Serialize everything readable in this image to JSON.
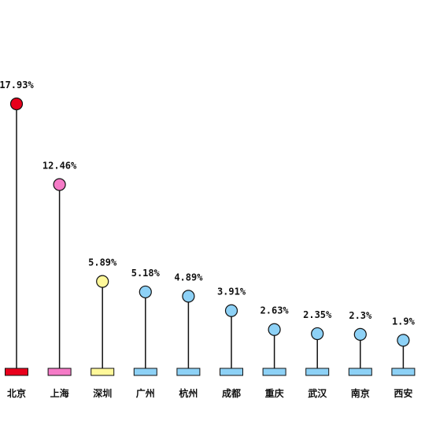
{
  "chart_data": {
    "type": "lollipop",
    "title": "",
    "xlabel": "",
    "ylabel": "",
    "ylim": [
      0,
      20
    ],
    "grid": false,
    "legend": "none",
    "categories": [
      "北京",
      "上海",
      "深圳",
      "广州",
      "杭州",
      "成都",
      "重庆",
      "武汉",
      "南京",
      "西安"
    ],
    "values": [
      17.93,
      12.46,
      5.89,
      5.18,
      4.89,
      3.91,
      2.63,
      2.35,
      2.3,
      1.9
    ],
    "labels": [
      "17.93%",
      "12.46%",
      "5.89%",
      "5.18%",
      "4.89%",
      "3.91%",
      "2.63%",
      "2.35%",
      "2.3%",
      "1.9%"
    ],
    "colors": [
      "#e8001c",
      "#f57bc7",
      "#fff89a",
      "#8dd1f6",
      "#8dd1f6",
      "#8dd1f6",
      "#8dd1f6",
      "#8dd1f6",
      "#8dd1f6",
      "#8dd1f6"
    ],
    "stem_color": "#111111"
  }
}
